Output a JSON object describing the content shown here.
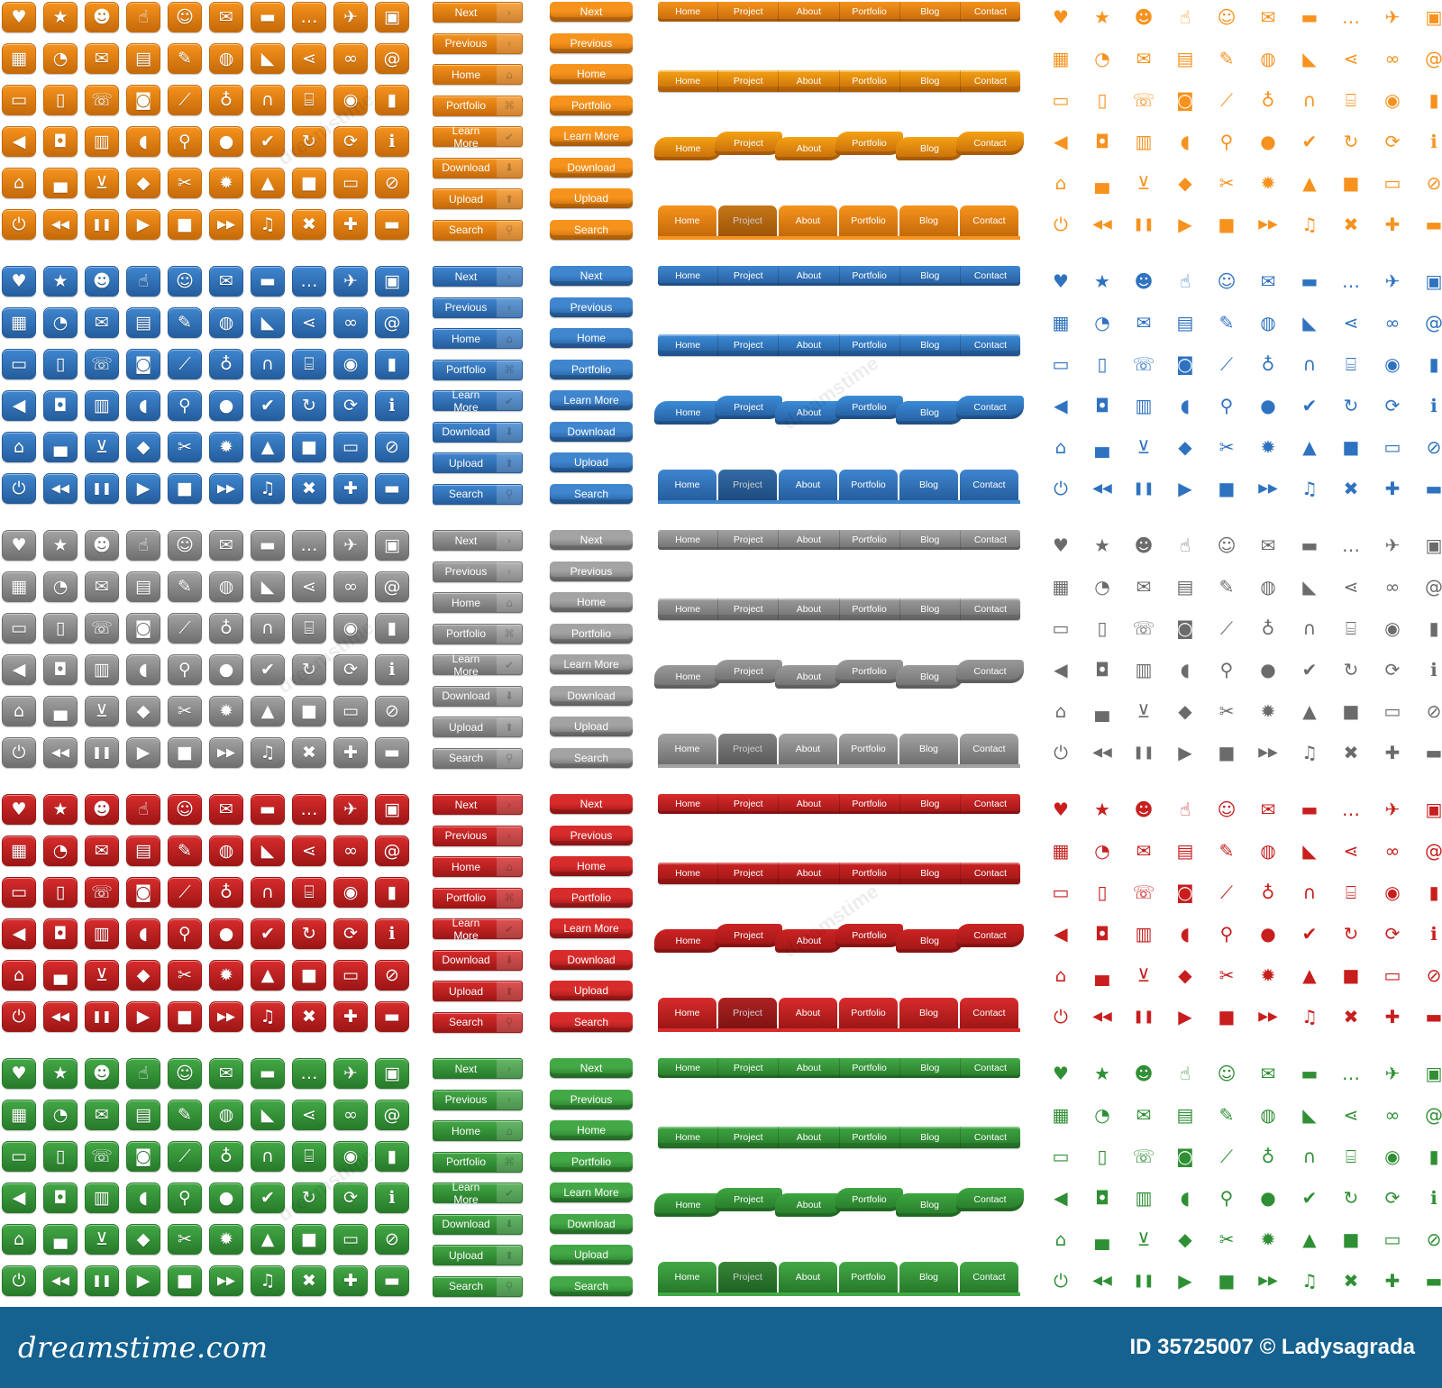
{
  "color_schemes": [
    {
      "name": "orange",
      "base": "#f6931d",
      "dark": "#c56a0a",
      "nav_ribbon": "#f5a213",
      "icon": "#f7921e"
    },
    {
      "name": "blue",
      "base": "#3f86cf",
      "dark": "#255d9d",
      "nav_ribbon": "#3b8bd7",
      "icon": "#2f72c0"
    },
    {
      "name": "gray",
      "base": "#a3a3a3",
      "dark": "#6f6f6f",
      "nav_ribbon": "#9a9a9a",
      "icon": "#6b6b6b"
    },
    {
      "name": "red",
      "base": "#d82c2c",
      "dark": "#9e1616",
      "nav_ribbon": "#cc2323",
      "icon": "#c81e1e"
    },
    {
      "name": "green",
      "base": "#43a846",
      "dark": "#277a2a",
      "nav_ribbon": "#3ea541",
      "icon": "#2f8f34"
    }
  ],
  "icon_rows": [
    [
      {
        "name": "heart-icon",
        "glyph": "♥"
      },
      {
        "name": "star-icon",
        "glyph": "★"
      },
      {
        "name": "user-chat-icon",
        "glyph": "☻"
      },
      {
        "name": "thumbs-up-icon",
        "glyph": "☝"
      },
      {
        "name": "group-icon",
        "glyph": "☺"
      },
      {
        "name": "chat-bubbles-icon",
        "glyph": "✉"
      },
      {
        "name": "speech-bubble-icon",
        "glyph": "▬"
      },
      {
        "name": "comment-icon",
        "glyph": "…"
      },
      {
        "name": "bird-icon",
        "glyph": "✈"
      },
      {
        "name": "address-book-icon",
        "glyph": "▣"
      }
    ],
    [
      {
        "name": "calendar-icon",
        "glyph": "▦"
      },
      {
        "name": "rss-circle-icon",
        "glyph": "◔"
      },
      {
        "name": "mail-icon",
        "glyph": "✉"
      },
      {
        "name": "news-icon",
        "glyph": "▤"
      },
      {
        "name": "note-edit-icon",
        "glyph": "✎"
      },
      {
        "name": "globe-icon",
        "glyph": "◍"
      },
      {
        "name": "rss-icon",
        "glyph": "◣"
      },
      {
        "name": "share-icon",
        "glyph": "⋖"
      },
      {
        "name": "link-icon",
        "glyph": "∞"
      },
      {
        "name": "at-sign-icon",
        "glyph": "@"
      }
    ],
    [
      {
        "name": "tv-icon",
        "glyph": "▭"
      },
      {
        "name": "mobile-icon",
        "glyph": "▯"
      },
      {
        "name": "phone-icon",
        "glyph": "☏"
      },
      {
        "name": "video-camera-icon",
        "glyph": "◙"
      },
      {
        "name": "telescope-icon",
        "glyph": "⟋"
      },
      {
        "name": "microphone-icon",
        "glyph": "♁"
      },
      {
        "name": "headphones-icon",
        "glyph": "∩"
      },
      {
        "name": "router-icon",
        "glyph": "⌸"
      },
      {
        "name": "webcam-icon",
        "glyph": "◉"
      },
      {
        "name": "ipod-icon",
        "glyph": "▮"
      }
    ],
    [
      {
        "name": "megaphone-icon",
        "glyph": "◀"
      },
      {
        "name": "camera-icon",
        "glyph": "◘"
      },
      {
        "name": "film-icon",
        "glyph": "▥"
      },
      {
        "name": "volume-icon",
        "glyph": "◖"
      },
      {
        "name": "search-icon",
        "glyph": "⚲"
      },
      {
        "name": "lightbulb-icon",
        "glyph": "●"
      },
      {
        "name": "checkmark-icon",
        "glyph": "✔"
      },
      {
        "name": "refresh-icon",
        "glyph": "↻"
      },
      {
        "name": "sync-icon",
        "glyph": "⟳"
      },
      {
        "name": "info-icon",
        "glyph": "ℹ"
      }
    ],
    [
      {
        "name": "home-icon",
        "glyph": "⌂"
      },
      {
        "name": "briefcase-icon",
        "glyph": "▄"
      },
      {
        "name": "cart-icon",
        "glyph": "⊻"
      },
      {
        "name": "tag-icon",
        "glyph": "◆"
      },
      {
        "name": "scissors-icon",
        "glyph": "✂"
      },
      {
        "name": "gear-icon",
        "glyph": "✹"
      },
      {
        "name": "unlock-icon",
        "glyph": "▲"
      },
      {
        "name": "lock-icon",
        "glyph": "■"
      },
      {
        "name": "battery-icon",
        "glyph": "▭"
      },
      {
        "name": "no-entry-icon",
        "glyph": "⊘"
      }
    ],
    [
      {
        "name": "power-icon",
        "glyph": "⏻"
      },
      {
        "name": "rewind-icon",
        "glyph": "◀◀"
      },
      {
        "name": "pause-icon",
        "glyph": "❚❚"
      },
      {
        "name": "play-icon",
        "glyph": "▶"
      },
      {
        "name": "stop-icon",
        "glyph": "■"
      },
      {
        "name": "fast-forward-icon",
        "glyph": "▶▶"
      },
      {
        "name": "music-icon",
        "glyph": "♫"
      },
      {
        "name": "close-icon",
        "glyph": "✖"
      },
      {
        "name": "plus-icon",
        "glyph": "✚"
      },
      {
        "name": "minus-icon",
        "glyph": "▬"
      }
    ]
  ],
  "buttons": [
    {
      "label": "Next",
      "icon": "›"
    },
    {
      "label": "Previous",
      "icon": "‹"
    },
    {
      "label": "Home",
      "icon": "⌂"
    },
    {
      "label": "Portfolio",
      "icon": "⌘"
    },
    {
      "label": "Learn More",
      "icon": "✔"
    },
    {
      "label": "Download",
      "icon": "⬇"
    },
    {
      "label": "Upload",
      "icon": "⬆"
    },
    {
      "label": "Search",
      "icon": "⚲"
    }
  ],
  "nav_items": [
    "Home",
    "Project",
    "About",
    "Portfolio",
    "Blog",
    "Contact"
  ],
  "tab_nav_active_index": 1,
  "watermark": "dreamstime",
  "footer": {
    "logo": "dreamstime.com",
    "credit": "ID 35725007 © Ladysagrada"
  }
}
